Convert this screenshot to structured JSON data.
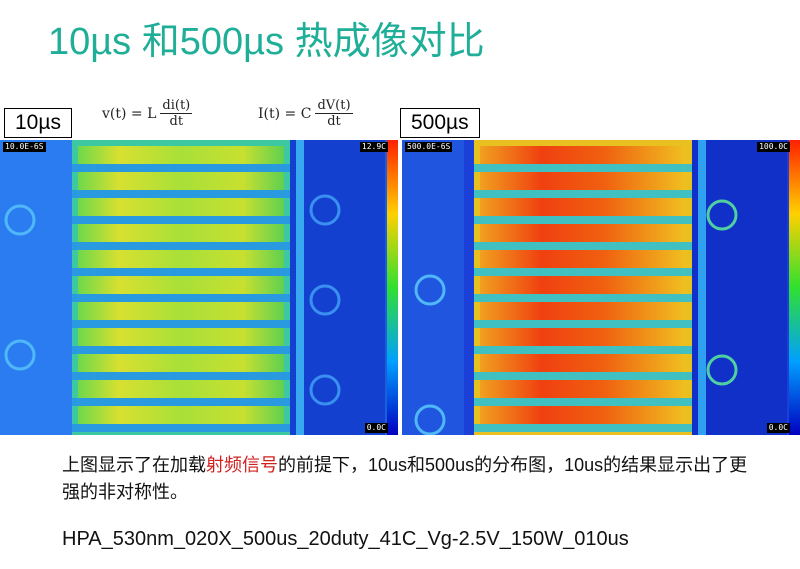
{
  "title": "10µs 和500µs 热成像对比",
  "formulas": {
    "voltage": {
      "lhs": "v(t) = L",
      "num": "di(t)",
      "den": "dt"
    },
    "current": {
      "lhs": "I(t) = C",
      "num": "dV(t)",
      "den": "dt"
    }
  },
  "left_panel": {
    "label": "10µs",
    "timestamp": "10.0E-6S",
    "scale_max": "12.9C",
    "scale_min": "0.0C"
  },
  "right_panel": {
    "label": "500µs",
    "timestamp": "500.0E-6S",
    "scale_max": "100.0C",
    "scale_min": "0.0C"
  },
  "description": {
    "part1": "上图显示了在加载",
    "highlight": "射频信号",
    "part2": "的前提下，10us和500us的分布图，10us的结果显示出了更强的非对称性。"
  },
  "caption": "HPA_530nm_020X_500us_20duty_41C_Vg-2.5V_150W_010us",
  "colors": {
    "title": "#1fae98",
    "highlight": "#d02020"
  }
}
